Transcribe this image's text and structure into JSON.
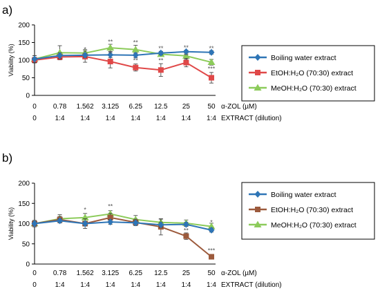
{
  "colors": {
    "boiling": "#2E75B6",
    "etoh_a": "#E04848",
    "etoh_b": "#9C5A3C",
    "meoh": "#8CCB5A",
    "axis": "#000000",
    "annotation": "#555555"
  },
  "chart_data": [
    {
      "panel_label": "a)",
      "type": "line",
      "ylabel": "Viability (%)",
      "ylim": [
        0,
        200
      ],
      "yticks": [
        0,
        50,
        100,
        150,
        200
      ],
      "categories": [
        "0",
        "0.78",
        "1.562",
        "3.125",
        "6.25",
        "12.5",
        "25",
        "50"
      ],
      "x_caption": "α-ZOL (µM)",
      "categories2": [
        "0",
        "1:4",
        "1:4",
        "1:4",
        "1:4",
        "1:4",
        "1:4",
        "1:4"
      ],
      "x_caption2": "EXTRACT (dilution)",
      "legend_position": "right",
      "series": [
        {
          "name": "Boiling water extract",
          "marker": "diamond",
          "color_key": "boiling",
          "values": [
            103,
            113,
            114,
            115,
            114,
            120,
            124,
            122
          ],
          "errors": [
            10,
            8,
            6,
            8,
            7,
            5,
            4,
            5
          ]
        },
        {
          "name": "EtOH:H₂O (70:30) extract",
          "marker": "square",
          "color_key": "etoh_a",
          "values": [
            100,
            109,
            110,
            96,
            79,
            72,
            93,
            50
          ],
          "errors": [
            8,
            8,
            16,
            18,
            10,
            18,
            12,
            15
          ]
        },
        {
          "name": "MeOH:H₂O (70:30) extract",
          "marker": "triangle",
          "color_key": "meoh",
          "values": [
            103,
            121,
            120,
            135,
            130,
            117,
            112,
            94
          ],
          "errors": [
            10,
            20,
            10,
            10,
            12,
            6,
            10,
            8
          ]
        }
      ],
      "annotations": [
        {
          "x_index": 2,
          "y": 125,
          "text": "*"
        },
        {
          "x_index": 3,
          "y": 146,
          "text": "**"
        },
        {
          "x_index": 3,
          "y": 112,
          "text": "*"
        },
        {
          "x_index": 4,
          "y": 144,
          "text": "**"
        },
        {
          "x_index": 4,
          "y": 93,
          "text": "**"
        },
        {
          "x_index": 5,
          "y": 127,
          "text": "**"
        },
        {
          "x_index": 5,
          "y": 93,
          "text": "**"
        },
        {
          "x_index": 6,
          "y": 129,
          "text": "**"
        },
        {
          "x_index": 6,
          "y": 107,
          "text": "**"
        },
        {
          "x_index": 7,
          "y": 127,
          "text": "**"
        },
        {
          "x_index": 7,
          "y": 70,
          "text": "***"
        }
      ]
    },
    {
      "panel_label": "b)",
      "type": "line",
      "ylabel": "Viability (%)",
      "ylim": [
        0,
        200
      ],
      "yticks": [
        0,
        50,
        100,
        150,
        200
      ],
      "categories": [
        "0",
        "0.78",
        "1.562",
        "3.125",
        "6.25",
        "12.5",
        "25",
        "50"
      ],
      "x_caption": "α-ZOL (µM)",
      "categories2": [
        "0",
        "1:4",
        "1:4",
        "1:4",
        "1:4",
        "1:4",
        "1:4",
        "1:4"
      ],
      "x_caption2": "EXTRACT (dilution)",
      "legend_position": "right",
      "series": [
        {
          "name": "Boiling water extract",
          "marker": "diamond",
          "color_key": "boiling",
          "values": [
            100,
            107,
            100,
            104,
            102,
            97,
            98,
            84
          ],
          "errors": [
            6,
            5,
            6,
            6,
            5,
            6,
            5,
            5
          ]
        },
        {
          "name": "EtOH:H₂O (70:30) extract",
          "marker": "square",
          "color_key": "etoh_b",
          "values": [
            100,
            110,
            100,
            115,
            103,
            92,
            69,
            18
          ],
          "errors": [
            8,
            8,
            12,
            10,
            8,
            20,
            8,
            5
          ]
        },
        {
          "name": "MeOH:H₂O (70:30) extract",
          "marker": "triangle",
          "color_key": "meoh",
          "values": [
            100,
            112,
            115,
            124,
            110,
            103,
            101,
            93
          ],
          "errors": [
            6,
            10,
            10,
            8,
            10,
            8,
            8,
            8
          ]
        }
      ],
      "annotations": [
        {
          "x_index": 2,
          "y": 129,
          "text": "*"
        },
        {
          "x_index": 3,
          "y": 138,
          "text": "**"
        },
        {
          "x_index": 6,
          "y": 78,
          "text": "**"
        },
        {
          "x_index": 7,
          "y": 98,
          "text": "*"
        },
        {
          "x_index": 7,
          "y": 28,
          "text": "***"
        }
      ]
    }
  ]
}
